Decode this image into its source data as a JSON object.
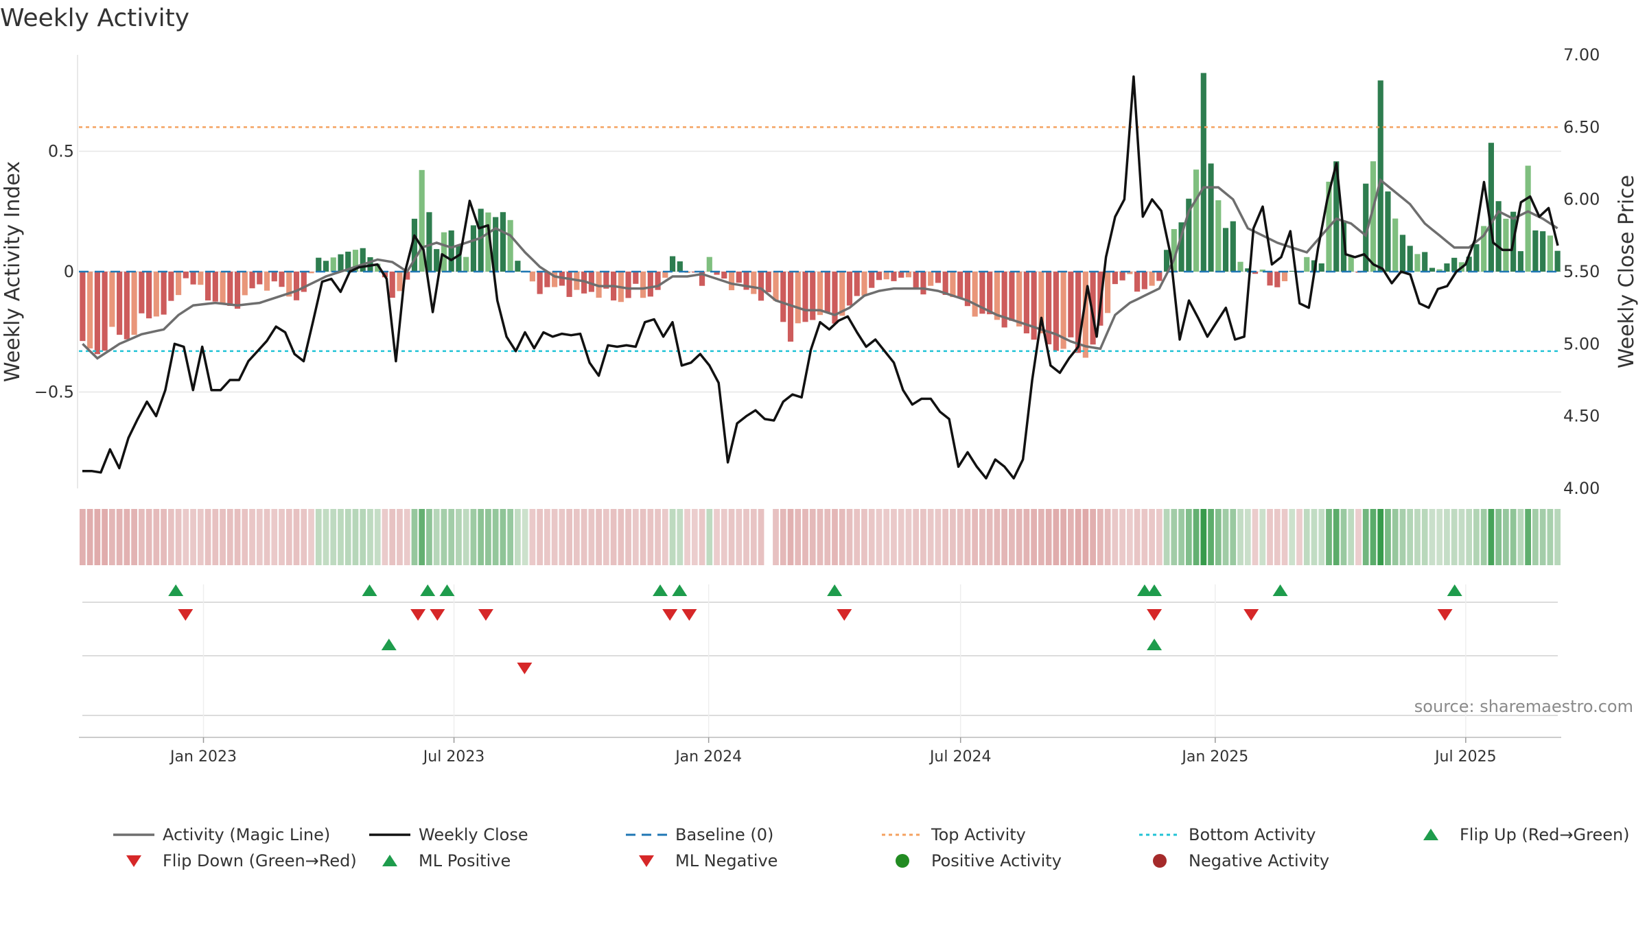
{
  "chart_data": {
    "type": "bar",
    "title": "Weekly Activity",
    "ylabel_left": "Weekly Activity Index",
    "ylabel_right": "Weekly Close Price",
    "source": "source: sharemaestro.com",
    "y_left_range": [
      -0.9,
      0.9
    ],
    "y_left_ticks": [
      {
        "value": 0.5,
        "label": "0.5"
      },
      {
        "value": 0,
        "label": "0"
      },
      {
        "value": -0.5,
        "label": "−0.5"
      }
    ],
    "y_right_range": [
      4.0,
      7.0
    ],
    "y_right_ticks": [
      {
        "value": 7.0,
        "label": "7.00"
      },
      {
        "value": 6.5,
        "label": "6.50"
      },
      {
        "value": 6.0,
        "label": "6.00"
      },
      {
        "value": 5.5,
        "label": "5.50"
      },
      {
        "value": 5.0,
        "label": "5.00"
      },
      {
        "value": 4.5,
        "label": "4.50"
      },
      {
        "value": 4.0,
        "label": "4.00"
      }
    ],
    "x_start": "2022-10-03",
    "x_end": "2025-09-08",
    "x_ticks": [
      {
        "date": "2023-01-01",
        "label": "Jan 2023"
      },
      {
        "date": "2023-07-01",
        "label": "Jul 2023"
      },
      {
        "date": "2024-01-01",
        "label": "Jan 2024"
      },
      {
        "date": "2024-07-01",
        "label": "Jul 2024"
      },
      {
        "date": "2025-01-01",
        "label": "Jan 2025"
      },
      {
        "date": "2025-07-01",
        "label": "Jul 2025"
      }
    ],
    "top_activity": 0.6,
    "bottom_activity": -0.33,
    "activity_keyframes": [
      [
        0,
        -0.3
      ],
      [
        2,
        -0.35
      ],
      [
        4,
        -0.25
      ],
      [
        6,
        -0.28
      ],
      [
        8,
        -0.2
      ],
      [
        10,
        -0.18
      ],
      [
        12,
        -0.15
      ],
      [
        14,
        -0.02
      ],
      [
        16,
        -0.08
      ],
      [
        18,
        -0.12
      ],
      [
        20,
        -0.16
      ],
      [
        22,
        -0.1
      ],
      [
        24,
        -0.06
      ],
      [
        26,
        -0.05
      ],
      [
        28,
        -0.1
      ],
      [
        30,
        -0.1
      ],
      [
        32,
        0.07
      ],
      [
        34,
        0.04
      ],
      [
        36,
        0.1
      ],
      [
        38,
        0.08
      ],
      [
        40,
        0.05
      ],
      [
        42,
        -0.12
      ],
      [
        44,
        -0.02
      ],
      [
        46,
        0.42
      ],
      [
        48,
        0.1
      ],
      [
        50,
        0.18
      ],
      [
        52,
        0.06
      ],
      [
        54,
        0.28
      ],
      [
        56,
        0.22
      ],
      [
        58,
        0.24
      ],
      [
        59,
        0.04
      ],
      [
        61,
        -0.05
      ],
      [
        63,
        -0.08
      ],
      [
        65,
        -0.06
      ],
      [
        67,
        -0.1
      ],
      [
        69,
        -0.08
      ],
      [
        71,
        -0.1
      ],
      [
        73,
        -0.12
      ],
      [
        75,
        -0.08
      ],
      [
        77,
        -0.1
      ],
      [
        79,
        -0.05
      ],
      [
        80,
        0.09
      ],
      [
        81,
        0.04
      ],
      [
        82,
        -0.01
      ],
      [
        84,
        -0.03
      ],
      [
        85,
        0.05
      ],
      [
        86,
        -0.02
      ],
      [
        88,
        -0.05
      ],
      [
        90,
        -0.08
      ],
      [
        92,
        -0.1
      ],
      [
        94,
        -0.12
      ],
      [
        96,
        -0.28
      ],
      [
        98,
        -0.2
      ],
      [
        100,
        -0.18
      ],
      [
        102,
        -0.2
      ],
      [
        104,
        -0.15
      ],
      [
        106,
        -0.08
      ],
      [
        108,
        -0.05
      ],
      [
        110,
        -0.02
      ],
      [
        112,
        -0.04
      ],
      [
        114,
        -0.08
      ],
      [
        116,
        -0.06
      ],
      [
        118,
        -0.1
      ],
      [
        120,
        -0.15
      ],
      [
        122,
        -0.18
      ],
      [
        124,
        -0.2
      ],
      [
        126,
        -0.22
      ],
      [
        128,
        -0.25
      ],
      [
        130,
        -0.28
      ],
      [
        132,
        -0.32
      ],
      [
        134,
        -0.3
      ],
      [
        136,
        -0.35
      ],
      [
        138,
        -0.25
      ],
      [
        140,
        -0.05
      ],
      [
        142,
        -0.03
      ],
      [
        144,
        -0.08
      ],
      [
        146,
        -0.05
      ],
      [
        147,
        0.12
      ],
      [
        149,
        0.2
      ],
      [
        150,
        0.3
      ],
      [
        151,
        0.45
      ],
      [
        152,
        0.8
      ],
      [
        153,
        0.45
      ],
      [
        154,
        0.3
      ],
      [
        155,
        0.2
      ],
      [
        156,
        0.18
      ],
      [
        157,
        0.05
      ],
      [
        158,
        0.02
      ],
      [
        160,
        -0.02
      ],
      [
        162,
        -0.06
      ],
      [
        164,
        -0.02
      ],
      [
        166,
        0.06
      ],
      [
        168,
        0.02
      ],
      [
        169,
        0.4
      ],
      [
        170,
        0.45
      ],
      [
        171,
        0.2
      ],
      [
        172,
        0.06
      ],
      [
        173,
        0.02
      ],
      [
        174,
        0.35
      ],
      [
        175,
        0.45
      ],
      [
        176,
        0.8
      ],
      [
        177,
        0.35
      ],
      [
        178,
        0.2
      ],
      [
        179,
        0.15
      ],
      [
        180,
        0.12
      ],
      [
        181,
        0.08
      ],
      [
        182,
        0.06
      ],
      [
        183,
        0.02
      ],
      [
        185,
        0.03
      ],
      [
        187,
        0.05
      ],
      [
        189,
        0.1
      ],
      [
        190,
        0.18
      ],
      [
        191,
        0.55
      ],
      [
        192,
        0.3
      ],
      [
        193,
        0.2
      ],
      [
        194,
        0.25
      ],
      [
        195,
        0.1
      ],
      [
        196,
        0.44
      ],
      [
        197,
        0.15
      ],
      [
        198,
        0.18
      ],
      [
        199,
        0.16
      ],
      [
        200,
        0.08
      ]
    ],
    "magic_line_keyframes": [
      [
        0,
        -0.3
      ],
      [
        2,
        -0.36
      ],
      [
        5,
        -0.3
      ],
      [
        8,
        -0.26
      ],
      [
        11,
        -0.24
      ],
      [
        13,
        -0.18
      ],
      [
        15,
        -0.14
      ],
      [
        18,
        -0.13
      ],
      [
        21,
        -0.14
      ],
      [
        24,
        -0.13
      ],
      [
        27,
        -0.1
      ],
      [
        29,
        -0.08
      ],
      [
        31,
        -0.05
      ],
      [
        33,
        -0.02
      ],
      [
        35,
        0.0
      ],
      [
        38,
        0.03
      ],
      [
        40,
        0.05
      ],
      [
        42,
        0.04
      ],
      [
        44,
        0.0
      ],
      [
        46,
        0.1
      ],
      [
        48,
        0.12
      ],
      [
        50,
        0.1
      ],
      [
        52,
        0.12
      ],
      [
        54,
        0.14
      ],
      [
        56,
        0.18
      ],
      [
        58,
        0.15
      ],
      [
        60,
        0.08
      ],
      [
        62,
        0.02
      ],
      [
        64,
        -0.02
      ],
      [
        66,
        -0.03
      ],
      [
        68,
        -0.04
      ],
      [
        70,
        -0.06
      ],
      [
        72,
        -0.06
      ],
      [
        74,
        -0.07
      ],
      [
        76,
        -0.07
      ],
      [
        78,
        -0.06
      ],
      [
        80,
        -0.02
      ],
      [
        82,
        -0.02
      ],
      [
        84,
        -0.01
      ],
      [
        86,
        -0.03
      ],
      [
        88,
        -0.05
      ],
      [
        90,
        -0.06
      ],
      [
        92,
        -0.07
      ],
      [
        94,
        -0.12
      ],
      [
        96,
        -0.14
      ],
      [
        98,
        -0.16
      ],
      [
        100,
        -0.16
      ],
      [
        102,
        -0.18
      ],
      [
        104,
        -0.15
      ],
      [
        106,
        -0.1
      ],
      [
        108,
        -0.08
      ],
      [
        110,
        -0.07
      ],
      [
        112,
        -0.07
      ],
      [
        114,
        -0.07
      ],
      [
        116,
        -0.08
      ],
      [
        118,
        -0.1
      ],
      [
        120,
        -0.12
      ],
      [
        122,
        -0.15
      ],
      [
        124,
        -0.18
      ],
      [
        126,
        -0.2
      ],
      [
        128,
        -0.22
      ],
      [
        130,
        -0.24
      ],
      [
        132,
        -0.26
      ],
      [
        134,
        -0.29
      ],
      [
        136,
        -0.31
      ],
      [
        138,
        -0.32
      ],
      [
        140,
        -0.18
      ],
      [
        142,
        -0.13
      ],
      [
        144,
        -0.1
      ],
      [
        146,
        -0.07
      ],
      [
        148,
        0.05
      ],
      [
        150,
        0.25
      ],
      [
        152,
        0.35
      ],
      [
        154,
        0.35
      ],
      [
        156,
        0.3
      ],
      [
        158,
        0.18
      ],
      [
        160,
        0.15
      ],
      [
        162,
        0.12
      ],
      [
        164,
        0.1
      ],
      [
        166,
        0.08
      ],
      [
        168,
        0.15
      ],
      [
        170,
        0.22
      ],
      [
        172,
        0.2
      ],
      [
        174,
        0.15
      ],
      [
        176,
        0.38
      ],
      [
        178,
        0.33
      ],
      [
        180,
        0.28
      ],
      [
        182,
        0.2
      ],
      [
        184,
        0.15
      ],
      [
        186,
        0.1
      ],
      [
        188,
        0.1
      ],
      [
        190,
        0.15
      ],
      [
        192,
        0.25
      ],
      [
        194,
        0.22
      ],
      [
        196,
        0.25
      ],
      [
        198,
        0.22
      ],
      [
        200,
        0.18
      ]
    ],
    "close_keyframes": [
      [
        0,
        4.12
      ],
      [
        1,
        4.12
      ],
      [
        2,
        4.11
      ],
      [
        3,
        4.27
      ],
      [
        4,
        4.14
      ],
      [
        5,
        4.35
      ],
      [
        6,
        4.48
      ],
      [
        7,
        4.6
      ],
      [
        8,
        4.5
      ],
      [
        9,
        4.68
      ],
      [
        10,
        5.0
      ],
      [
        11,
        4.98
      ],
      [
        12,
        4.68
      ],
      [
        13,
        4.98
      ],
      [
        14,
        4.68
      ],
      [
        15,
        4.68
      ],
      [
        16,
        4.75
      ],
      [
        17,
        4.75
      ],
      [
        18,
        4.88
      ],
      [
        19,
        4.95
      ],
      [
        20,
        5.02
      ],
      [
        21,
        5.12
      ],
      [
        22,
        5.08
      ],
      [
        23,
        4.93
      ],
      [
        24,
        4.88
      ],
      [
        25,
        5.15
      ],
      [
        26,
        5.43
      ],
      [
        27,
        5.45
      ],
      [
        28,
        5.36
      ],
      [
        29,
        5.5
      ],
      [
        30,
        5.53
      ],
      [
        31,
        5.54
      ],
      [
        32,
        5.55
      ],
      [
        33,
        5.45
      ],
      [
        34,
        4.88
      ],
      [
        35,
        5.5
      ],
      [
        36,
        5.75
      ],
      [
        37,
        5.65
      ],
      [
        38,
        5.22
      ],
      [
        39,
        5.62
      ],
      [
        40,
        5.58
      ],
      [
        41,
        5.62
      ],
      [
        42,
        5.99
      ],
      [
        43,
        5.8
      ],
      [
        44,
        5.82
      ],
      [
        45,
        5.3
      ],
      [
        46,
        5.05
      ],
      [
        47,
        4.95
      ],
      [
        48,
        5.08
      ],
      [
        49,
        4.97
      ],
      [
        50,
        5.08
      ],
      [
        51,
        5.05
      ],
      [
        52,
        5.07
      ],
      [
        53,
        5.06
      ],
      [
        54,
        5.07
      ],
      [
        55,
        4.87
      ],
      [
        56,
        4.78
      ],
      [
        57,
        4.99
      ],
      [
        58,
        4.98
      ],
      [
        59,
        4.99
      ],
      [
        60,
        4.98
      ],
      [
        61,
        5.15
      ],
      [
        62,
        5.17
      ],
      [
        63,
        5.05
      ],
      [
        64,
        5.15
      ],
      [
        65,
        4.85
      ],
      [
        66,
        4.87
      ],
      [
        67,
        4.93
      ],
      [
        68,
        4.85
      ],
      [
        69,
        4.73
      ],
      [
        70,
        4.18
      ],
      [
        71,
        4.45
      ],
      [
        72,
        4.5
      ],
      [
        73,
        4.54
      ],
      [
        74,
        4.48
      ],
      [
        75,
        4.47
      ],
      [
        76,
        4.6
      ],
      [
        77,
        4.65
      ],
      [
        78,
        4.63
      ],
      [
        79,
        4.96
      ],
      [
        80,
        5.15
      ],
      [
        81,
        5.1
      ],
      [
        82,
        5.16
      ],
      [
        83,
        5.19
      ],
      [
        84,
        5.08
      ],
      [
        85,
        4.98
      ],
      [
        86,
        5.03
      ],
      [
        87,
        4.95
      ],
      [
        88,
        4.87
      ],
      [
        89,
        4.68
      ],
      [
        90,
        4.58
      ],
      [
        91,
        4.62
      ],
      [
        92,
        4.62
      ],
      [
        93,
        4.53
      ],
      [
        94,
        4.48
      ],
      [
        95,
        4.15
      ],
      [
        96,
        4.25
      ],
      [
        97,
        4.15
      ],
      [
        98,
        4.07
      ],
      [
        99,
        4.2
      ],
      [
        100,
        4.15
      ],
      [
        101,
        4.07
      ],
      [
        102,
        4.2
      ],
      [
        103,
        4.75
      ],
      [
        104,
        5.18
      ],
      [
        105,
        4.85
      ],
      [
        106,
        4.8
      ],
      [
        107,
        4.9
      ],
      [
        108,
        4.98
      ],
      [
        109,
        5.4
      ],
      [
        110,
        5.05
      ],
      [
        111,
        5.6
      ],
      [
        112,
        5.88
      ],
      [
        113,
        6.0
      ],
      [
        114,
        6.85
      ],
      [
        115,
        5.88
      ],
      [
        116,
        6.0
      ],
      [
        117,
        5.92
      ],
      [
        118,
        5.62
      ],
      [
        119,
        5.03
      ],
      [
        120,
        5.3
      ],
      [
        121,
        5.18
      ],
      [
        122,
        5.05
      ],
      [
        123,
        5.15
      ],
      [
        124,
        5.25
      ],
      [
        125,
        5.03
      ],
      [
        126,
        5.05
      ],
      [
        127,
        5.8
      ],
      [
        128,
        5.95
      ],
      [
        129,
        5.55
      ],
      [
        130,
        5.6
      ],
      [
        131,
        5.78
      ],
      [
        132,
        5.28
      ],
      [
        133,
        5.25
      ],
      [
        134,
        5.66
      ],
      [
        135,
        6.0
      ],
      [
        136,
        6.25
      ],
      [
        137,
        5.62
      ],
      [
        138,
        5.6
      ],
      [
        139,
        5.62
      ],
      [
        140,
        5.55
      ],
      [
        141,
        5.52
      ],
      [
        142,
        5.42
      ],
      [
        143,
        5.5
      ],
      [
        144,
        5.48
      ],
      [
        145,
        5.28
      ],
      [
        146,
        5.25
      ],
      [
        147,
        5.38
      ],
      [
        148,
        5.4
      ],
      [
        149,
        5.5
      ],
      [
        150,
        5.55
      ],
      [
        151,
        5.72
      ],
      [
        152,
        6.12
      ],
      [
        153,
        5.7
      ],
      [
        154,
        5.65
      ],
      [
        155,
        5.65
      ],
      [
        156,
        5.98
      ],
      [
        157,
        6.02
      ],
      [
        158,
        5.88
      ],
      [
        159,
        5.94
      ],
      [
        160,
        5.68
      ]
    ],
    "heatmap_note": "intensity strip below chart, color derived from activity sign/magnitude",
    "flip_up_dates": [
      "2022-12-12",
      "2023-05-01",
      "2023-06-12",
      "2023-06-26",
      "2023-11-27",
      "2023-12-11",
      "2024-04-01",
      "2024-11-11",
      "2024-11-18",
      "2025-02-17",
      "2025-06-23"
    ],
    "flip_down_dates": [
      "2022-12-19",
      "2023-06-05",
      "2023-06-19",
      "2023-07-24",
      "2023-12-04",
      "2023-12-18",
      "2024-04-08",
      "2024-11-18",
      "2025-01-27",
      "2025-06-16"
    ],
    "ml_positive_dates": [
      "2023-05-15",
      "2024-11-18"
    ],
    "ml_negative_dates": [
      "2023-08-21"
    ],
    "legend": [
      {
        "key": "magic",
        "label": "Activity (Magic Line)"
      },
      {
        "key": "close",
        "label": "Weekly Close"
      },
      {
        "key": "baseline",
        "label": "Baseline (0)"
      },
      {
        "key": "top",
        "label": "Top Activity"
      },
      {
        "key": "bottom",
        "label": "Bottom Activity"
      },
      {
        "key": "flipup",
        "label": "Flip Up (Red→Green)"
      },
      {
        "key": "flipdown",
        "label": "Flip Down (Green→Red)"
      },
      {
        "key": "mlpos",
        "label": "ML Positive"
      },
      {
        "key": "mlneg",
        "label": "ML Negative"
      },
      {
        "key": "posact",
        "label": "Positive Activity"
      },
      {
        "key": "negact",
        "label": "Negative Activity"
      }
    ]
  },
  "colors": {
    "pos_strong": "#2e7d4f",
    "pos_light": "#7fbf7f",
    "neg_strong": "#cd5c5c",
    "neg_light": "#e9967a",
    "magic": "#6e6e6e",
    "close": "#111111",
    "baseline": "#1f77b4",
    "top": "#f4a261",
    "bottom": "#22c3d6",
    "flip_up": "#1e9c4c",
    "flip_down": "#d62728",
    "pos_dot": "#228b22",
    "neg_dot": "#a52a2a",
    "grid": "#e6e6e6"
  }
}
